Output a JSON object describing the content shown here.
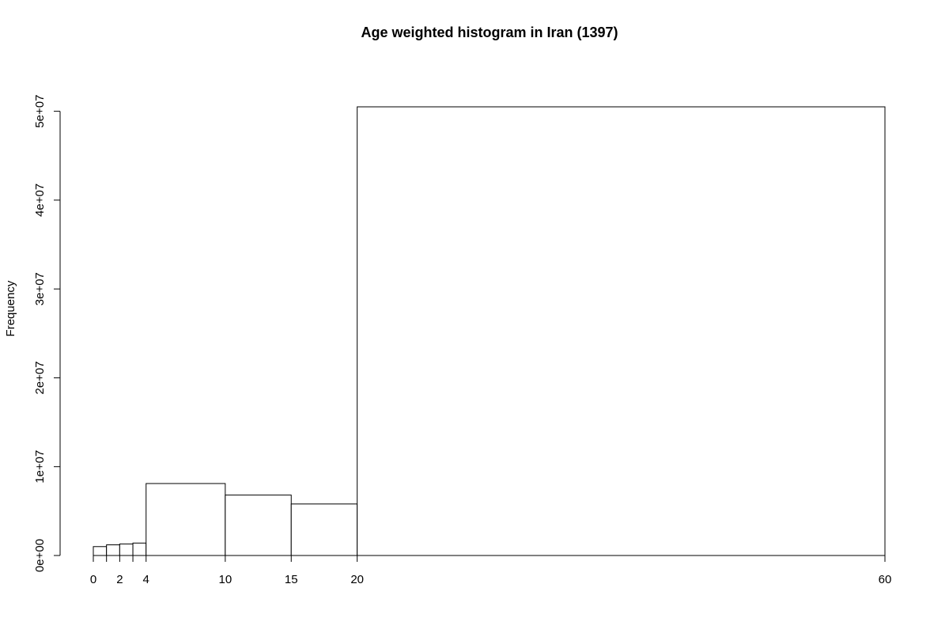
{
  "chart_data": {
    "type": "bar",
    "title": "Age weighted histogram in Iran (1397)",
    "xlabel": "",
    "ylabel": "Frequency",
    "bins": [
      {
        "x0": 0,
        "x1": 1,
        "value": 1000000
      },
      {
        "x0": 1,
        "x1": 2,
        "value": 1200000
      },
      {
        "x0": 2,
        "x1": 3,
        "value": 1300000
      },
      {
        "x0": 3,
        "x1": 4,
        "value": 1400000
      },
      {
        "x0": 4,
        "x1": 10,
        "value": 8100000
      },
      {
        "x0": 10,
        "x1": 15,
        "value": 6800000
      },
      {
        "x0": 15,
        "x1": 20,
        "value": 5800000
      },
      {
        "x0": 20,
        "x1": 60,
        "value": 50500000
      }
    ],
    "x_ticks": [
      {
        "value": 0,
        "label": "0"
      },
      {
        "value": 2,
        "label": "2"
      },
      {
        "value": 4,
        "label": "4"
      },
      {
        "value": 10,
        "label": "10"
      },
      {
        "value": 15,
        "label": "15"
      },
      {
        "value": 20,
        "label": "20"
      },
      {
        "value": 60,
        "label": "60"
      }
    ],
    "y_ticks": [
      {
        "value": 0,
        "label": "0e+00"
      },
      {
        "value": 10000000,
        "label": "1e+07"
      },
      {
        "value": 20000000,
        "label": "2e+07"
      },
      {
        "value": 30000000,
        "label": "3e+07"
      },
      {
        "value": 40000000,
        "label": "4e+07"
      },
      {
        "value": 50000000,
        "label": "5e+07"
      }
    ],
    "xlim": [
      0,
      60
    ],
    "ylim": [
      0,
      50500000
    ],
    "grid": false,
    "legend": "none",
    "colors": {
      "bar_fill": "#ffffff",
      "bar_stroke": "#000000"
    }
  }
}
